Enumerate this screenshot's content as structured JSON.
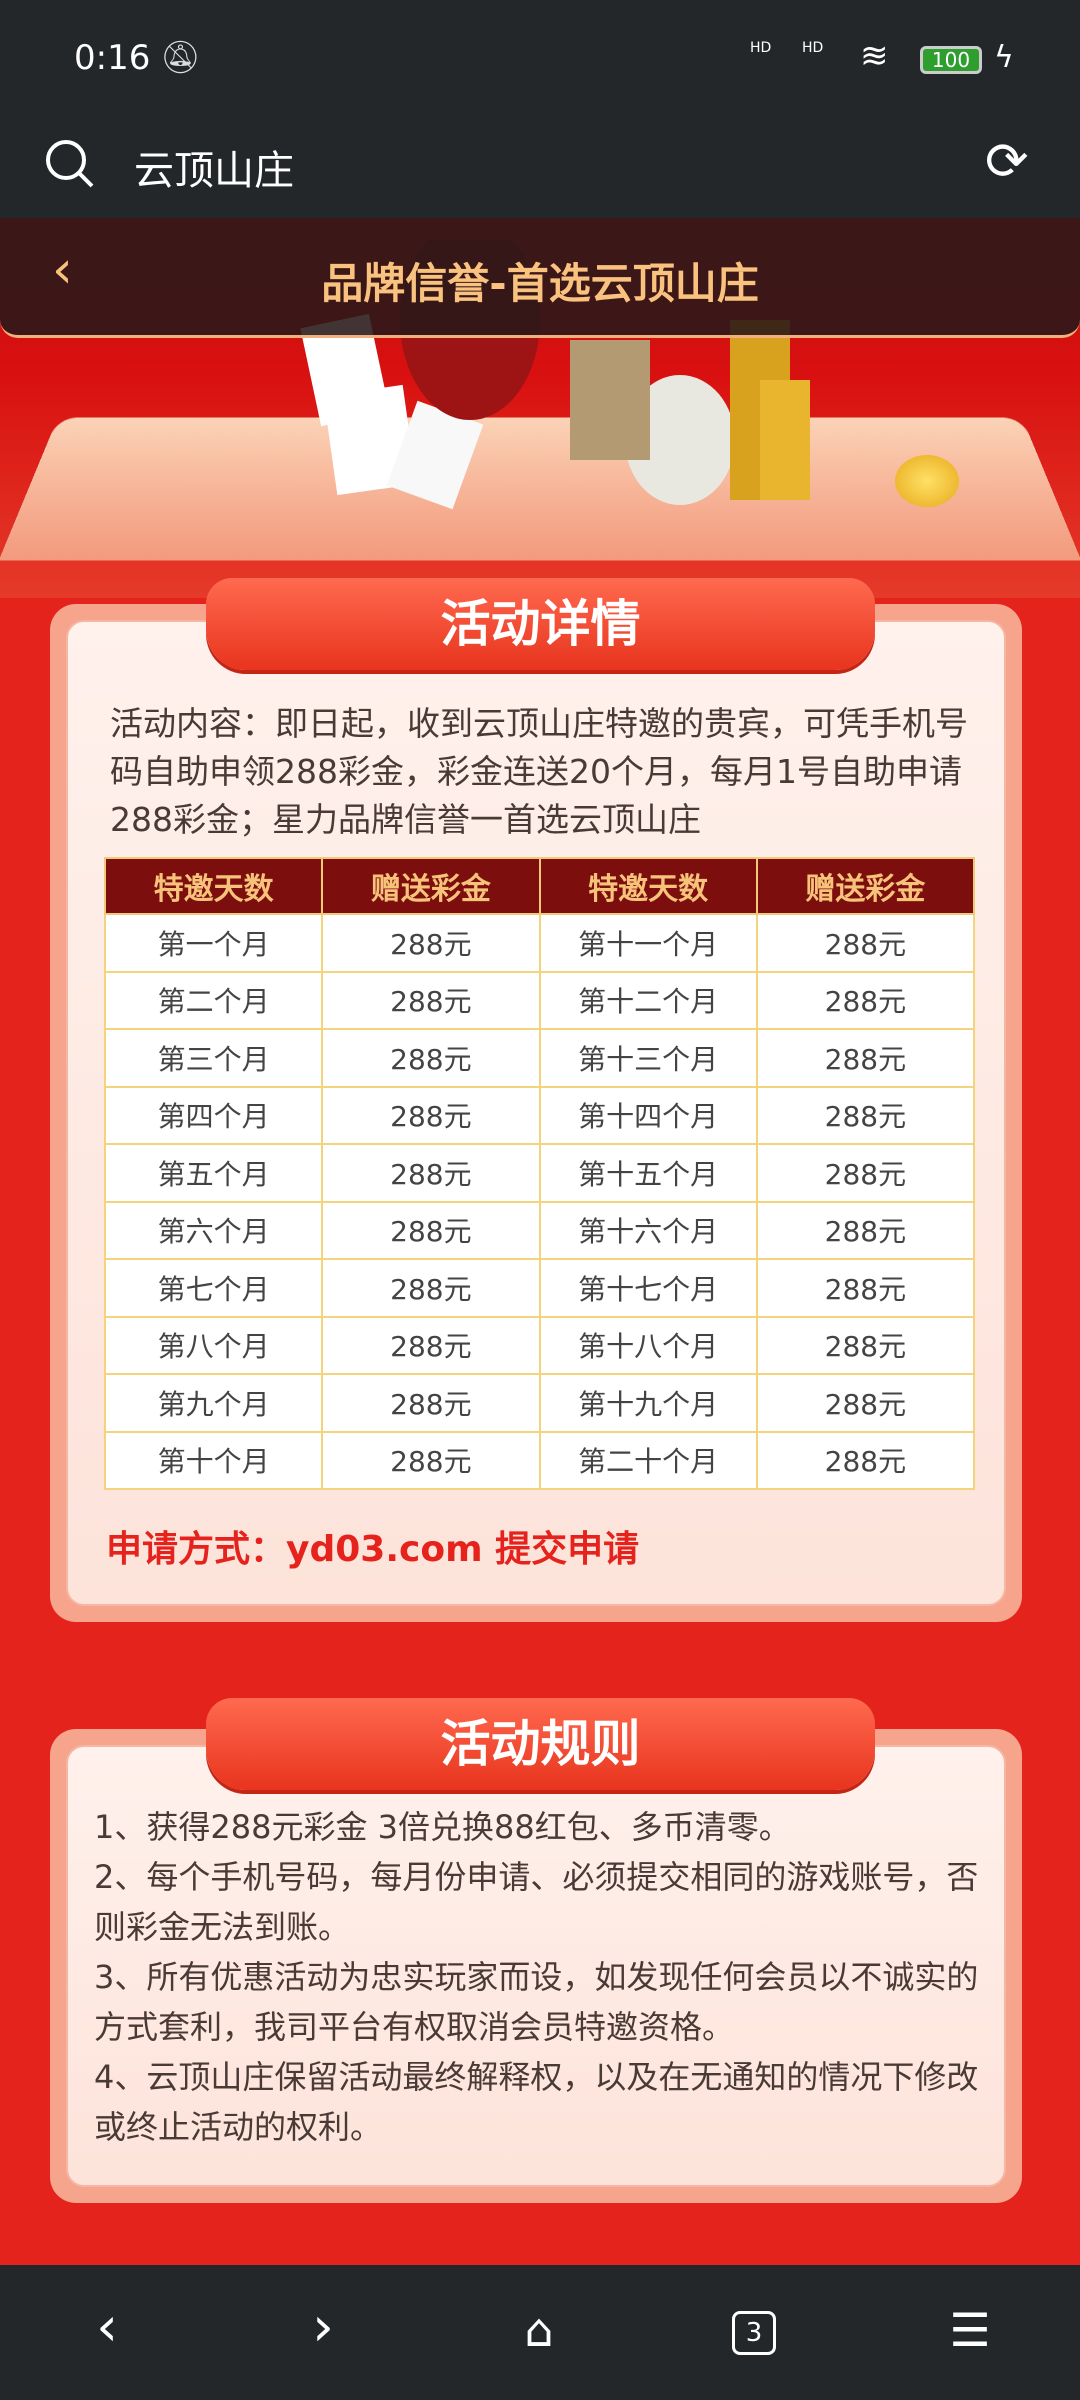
{
  "status_bar": {
    "time": "0:16",
    "signal1": "HD",
    "signal2": "HD",
    "battery": "100"
  },
  "address_bar": {
    "query": "云顶山庄"
  },
  "header": {
    "title": "品牌信誉-首选云顶山庄"
  },
  "details": {
    "title": "活动详情",
    "content": "活动内容：即日起，收到云顶山庄特邀的贵宾，可凭手机号码自助申领288彩金，彩金连送20个月，每月1号自助申请288彩金；星力品牌信誉一首选云顶山庄",
    "table": {
      "headers": [
        "特邀天数",
        "赠送彩金",
        "特邀天数",
        "赠送彩金"
      ],
      "rows": [
        [
          "第一个月",
          "288元",
          "第十一个月",
          "288元"
        ],
        [
          "第二个月",
          "288元",
          "第十二个月",
          "288元"
        ],
        [
          "第三个月",
          "288元",
          "第十三个月",
          "288元"
        ],
        [
          "第四个月",
          "288元",
          "第十四个月",
          "288元"
        ],
        [
          "第五个月",
          "288元",
          "第十五个月",
          "288元"
        ],
        [
          "第六个月",
          "288元",
          "第十六个月",
          "288元"
        ],
        [
          "第七个月",
          "288元",
          "第十七个月",
          "288元"
        ],
        [
          "第八个月",
          "288元",
          "第十八个月",
          "288元"
        ],
        [
          "第九个月",
          "288元",
          "第十九个月",
          "288元"
        ],
        [
          "第十个月",
          "288元",
          "第二十个月",
          "288元"
        ]
      ]
    },
    "apply": "申请方式：yd03.com 提交申请"
  },
  "rules": {
    "title": "活动规则",
    "items": [
      "1、获得288元彩金  3倍兑换88红包、多币清零。",
      "2、每个手机号码，每月份申请、必须提交相同的游戏账号，否则彩金无法到账。",
      "3、所有优惠活动为忠实玩家而设，如发现任何会员以不诚实的方式套利，我司平台有权取消会员特邀资格。",
      "4、云顶山庄保留活动最终解释权，以及在无通知的情况下修改或终止活动的权利。"
    ]
  },
  "bottom_nav": {
    "tab_count": "3"
  },
  "colors": {
    "background": "#e3231c",
    "table_header": "#7c0e0e",
    "header_text": "#f9c27f",
    "accent_red": "#e5231c"
  }
}
